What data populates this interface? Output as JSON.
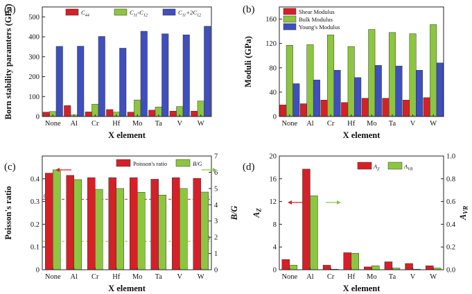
{
  "colors": {
    "red": "#d62027",
    "green": "#8cc63f",
    "blue": "#3f4fbd"
  },
  "chart_data": [
    {
      "type": "bar",
      "panel_label": "(a)",
      "categories": [
        "None",
        "Al",
        "Cr",
        "Hf",
        "Mo",
        "Ta",
        "V",
        "W"
      ],
      "xlabel": "X element",
      "ylabel": "Born stability paramters (GPa)",
      "ylim": [
        0,
        550
      ],
      "yticks": [
        0,
        100,
        200,
        300,
        400,
        500
      ],
      "legend_position": "top",
      "series": [
        {
          "name": "C44",
          "color": "red",
          "values": [
            22,
            55,
            23,
            35,
            22,
            32,
            27,
            27
          ]
        },
        {
          "name": "C11-C12",
          "color": "green",
          "values": [
            25,
            8,
            62,
            22,
            83,
            48,
            50,
            78
          ]
        },
        {
          "name": "C11+2C12",
          "color": "blue",
          "values": [
            352,
            353,
            402,
            343,
            428,
            415,
            410,
            453
          ]
        }
      ]
    },
    {
      "type": "bar",
      "panel_label": "(b)",
      "categories": [
        "None",
        "Al",
        "Cr",
        "Hf",
        "Mo",
        "Ta",
        "V",
        "W"
      ],
      "xlabel": "X element",
      "ylabel": "Moduli (GPa)",
      "ylim": [
        0,
        180
      ],
      "yticks": [
        0,
        40,
        80,
        120,
        160
      ],
      "legend_position": "top-left",
      "series": [
        {
          "name": "Shear Modulus",
          "color": "red",
          "values": [
            19,
            21,
            27,
            23,
            30,
            30,
            27,
            31
          ]
        },
        {
          "name": "Bulk Modulus",
          "color": "green",
          "values": [
            117,
            118,
            134,
            115,
            143,
            138,
            136,
            151
          ]
        },
        {
          "name": "Young's Modulus",
          "color": "blue",
          "values": [
            54,
            60,
            76,
            64,
            84,
            83,
            76,
            88
          ]
        }
      ]
    },
    {
      "type": "bar",
      "panel_label": "(c)",
      "categories": [
        "None",
        "Al",
        "Cr",
        "Hf",
        "Mo",
        "Ta",
        "V",
        "W"
      ],
      "xlabel": "X element",
      "ylabel": "Poisson's ratio",
      "y2label": "B/G",
      "ylim": [
        0,
        0.5
      ],
      "yticks": [
        0,
        0.1,
        0.2,
        0.3,
        0.4
      ],
      "y2lim": [
        0,
        7
      ],
      "y2ticks": [
        0,
        1,
        2,
        3,
        4,
        5,
        6,
        7
      ],
      "legend_position": "top",
      "reference_lines": [
        {
          "axis": "left",
          "value": 0.31,
          "label": "0.31",
          "color": "red"
        },
        {
          "axis": "right",
          "value": 1.75,
          "label": "1.75",
          "color": "green"
        }
      ],
      "series": [
        {
          "name": "Poisson's ratio",
          "color": "red",
          "axis": "left",
          "values": [
            0.425,
            0.415,
            0.405,
            0.405,
            0.405,
            0.398,
            0.405,
            0.402
          ]
        },
        {
          "name": "B/G",
          "color": "green",
          "axis": "right",
          "values": [
            6.15,
            5.55,
            4.95,
            5.0,
            4.77,
            4.6,
            5.0,
            4.78
          ]
        }
      ]
    },
    {
      "type": "bar",
      "panel_label": "(d)",
      "categories": [
        "None",
        "Al",
        "Cr",
        "Hf",
        "Mo",
        "Ta",
        "V",
        "W"
      ],
      "xlabel": "X element",
      "ylabel": "AZ",
      "y2label": "AVR",
      "ylim": [
        0,
        20
      ],
      "yticks": [
        0,
        4,
        8,
        12,
        16,
        20
      ],
      "y2lim": [
        0,
        1.0
      ],
      "y2ticks": [
        "0.0",
        "0.2",
        "0.4",
        "0.6",
        "0.8",
        "1.0"
      ],
      "legend_position": "top",
      "series": [
        {
          "name": "AZ",
          "color": "red",
          "axis": "left",
          "values": [
            1.8,
            17.7,
            0.8,
            3.0,
            0.5,
            1.4,
            1.1,
            0.7
          ]
        },
        {
          "name": "AVR",
          "color": "green",
          "axis": "right",
          "values": [
            0.04,
            0.65,
            0.005,
            0.145,
            0.035,
            0.015,
            0.005,
            0.015
          ]
        }
      ]
    }
  ]
}
